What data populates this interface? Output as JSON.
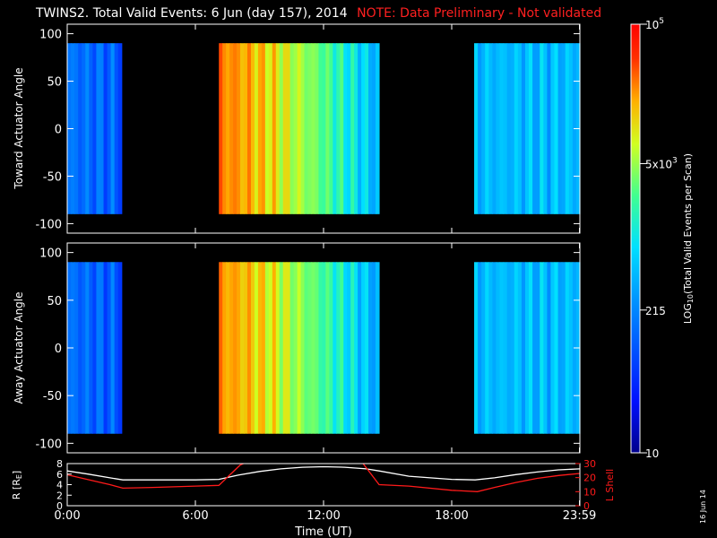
{
  "title": {
    "main": "TWINS2. Total Valid Events:  6 Jun (day 157), 2014",
    "note": "NOTE: Data Preliminary - Not validated"
  },
  "colors": {
    "background": "#000000",
    "axes": "#ffffff",
    "r_line": "#ffffff",
    "lshell_line": "#ff1a1a",
    "note_text": "#ff2020"
  },
  "side_date": "16 Jun 14",
  "chart_data": [
    {
      "type": "heatmap",
      "ylabel": "Toward Actuator Angle",
      "ylim": [
        -110,
        110
      ],
      "yticks": [
        100,
        50,
        0,
        -50,
        -100
      ],
      "xlim": [
        0,
        24
      ],
      "segments": [
        {
          "start": 0.0,
          "end": 2.55,
          "level": 0.3
        },
        {
          "start": 7.1,
          "end": 14.6,
          "level": 0.74
        },
        {
          "start": 19.05,
          "end": 24.0,
          "level": 0.42
        }
      ],
      "angle_range": [
        -90,
        90
      ]
    },
    {
      "type": "heatmap",
      "ylabel": "Away Actuator Angle",
      "ylim": [
        -110,
        110
      ],
      "yticks": [
        100,
        50,
        0,
        -50,
        -100
      ],
      "xlim": [
        0,
        24
      ],
      "segments": [
        {
          "start": 0.0,
          "end": 2.55,
          "level": 0.29
        },
        {
          "start": 7.1,
          "end": 14.6,
          "level": 0.72
        },
        {
          "start": 19.05,
          "end": 24.0,
          "level": 0.42
        }
      ],
      "angle_range": [
        -90,
        90
      ]
    },
    {
      "type": "line",
      "xlabel": "Time (UT)",
      "xticks": [
        "0:00",
        "6:00",
        "12:00",
        "18:00",
        "23:59"
      ],
      "xtick_hours": [
        0,
        6,
        12,
        18,
        23.98
      ],
      "xlim": [
        0,
        24
      ],
      "ylabel_left": "R [R",
      "ylabel_left_sub": "E",
      "ylabel_left_end": "]",
      "ylim_left": [
        0,
        8
      ],
      "yticks_left": [
        8,
        6,
        4,
        2,
        0
      ],
      "ylabel_right": "L Shell",
      "ylim_right": [
        0,
        30
      ],
      "yticks_right": [
        30,
        20,
        10,
        0
      ],
      "series": [
        {
          "name": "R",
          "axis": "left",
          "x": [
            0,
            1,
            2,
            2.6,
            4,
            6,
            7.1,
            8,
            9,
            10,
            11,
            12,
            13,
            14,
            14.6,
            16,
            18,
            19.1,
            20,
            21,
            22,
            23,
            24
          ],
          "y": [
            6.6,
            6.0,
            5.3,
            4.9,
            4.9,
            4.9,
            5.0,
            5.8,
            6.5,
            7.0,
            7.3,
            7.4,
            7.3,
            7.0,
            6.6,
            5.6,
            5.0,
            4.9,
            5.3,
            5.9,
            6.4,
            6.8,
            7.0
          ]
        },
        {
          "name": "L Shell",
          "axis": "right",
          "x": [
            0,
            1,
            2,
            2.6,
            4,
            6,
            7.1,
            8.1,
            8.4,
            13.8,
            14.6,
            16,
            18,
            19.2,
            20,
            21,
            22,
            23,
            24
          ],
          "y": [
            22,
            18.5,
            15,
            12.5,
            13,
            14,
            14.5,
            29,
            31,
            31,
            15,
            14,
            11,
            10,
            13,
            16.5,
            19.5,
            21.5,
            23
          ]
        }
      ]
    },
    {
      "type": "heatmap-colorbar",
      "label_prefix": "LOG",
      "label_sub": "10",
      "label_suffix": "(Total Valid  Events per Scan)",
      "min": 10,
      "max": 100000,
      "ticks": [
        {
          "value": 100000,
          "mant": "",
          "base": "10",
          "exp": "5"
        },
        {
          "value": 5000,
          "mant": "5x",
          "base": "10",
          "exp": "3"
        },
        {
          "value": 215,
          "mant": "",
          "base": "215",
          "exp": ""
        },
        {
          "value": 10,
          "mant": "",
          "base": "10",
          "exp": ""
        }
      ]
    }
  ]
}
